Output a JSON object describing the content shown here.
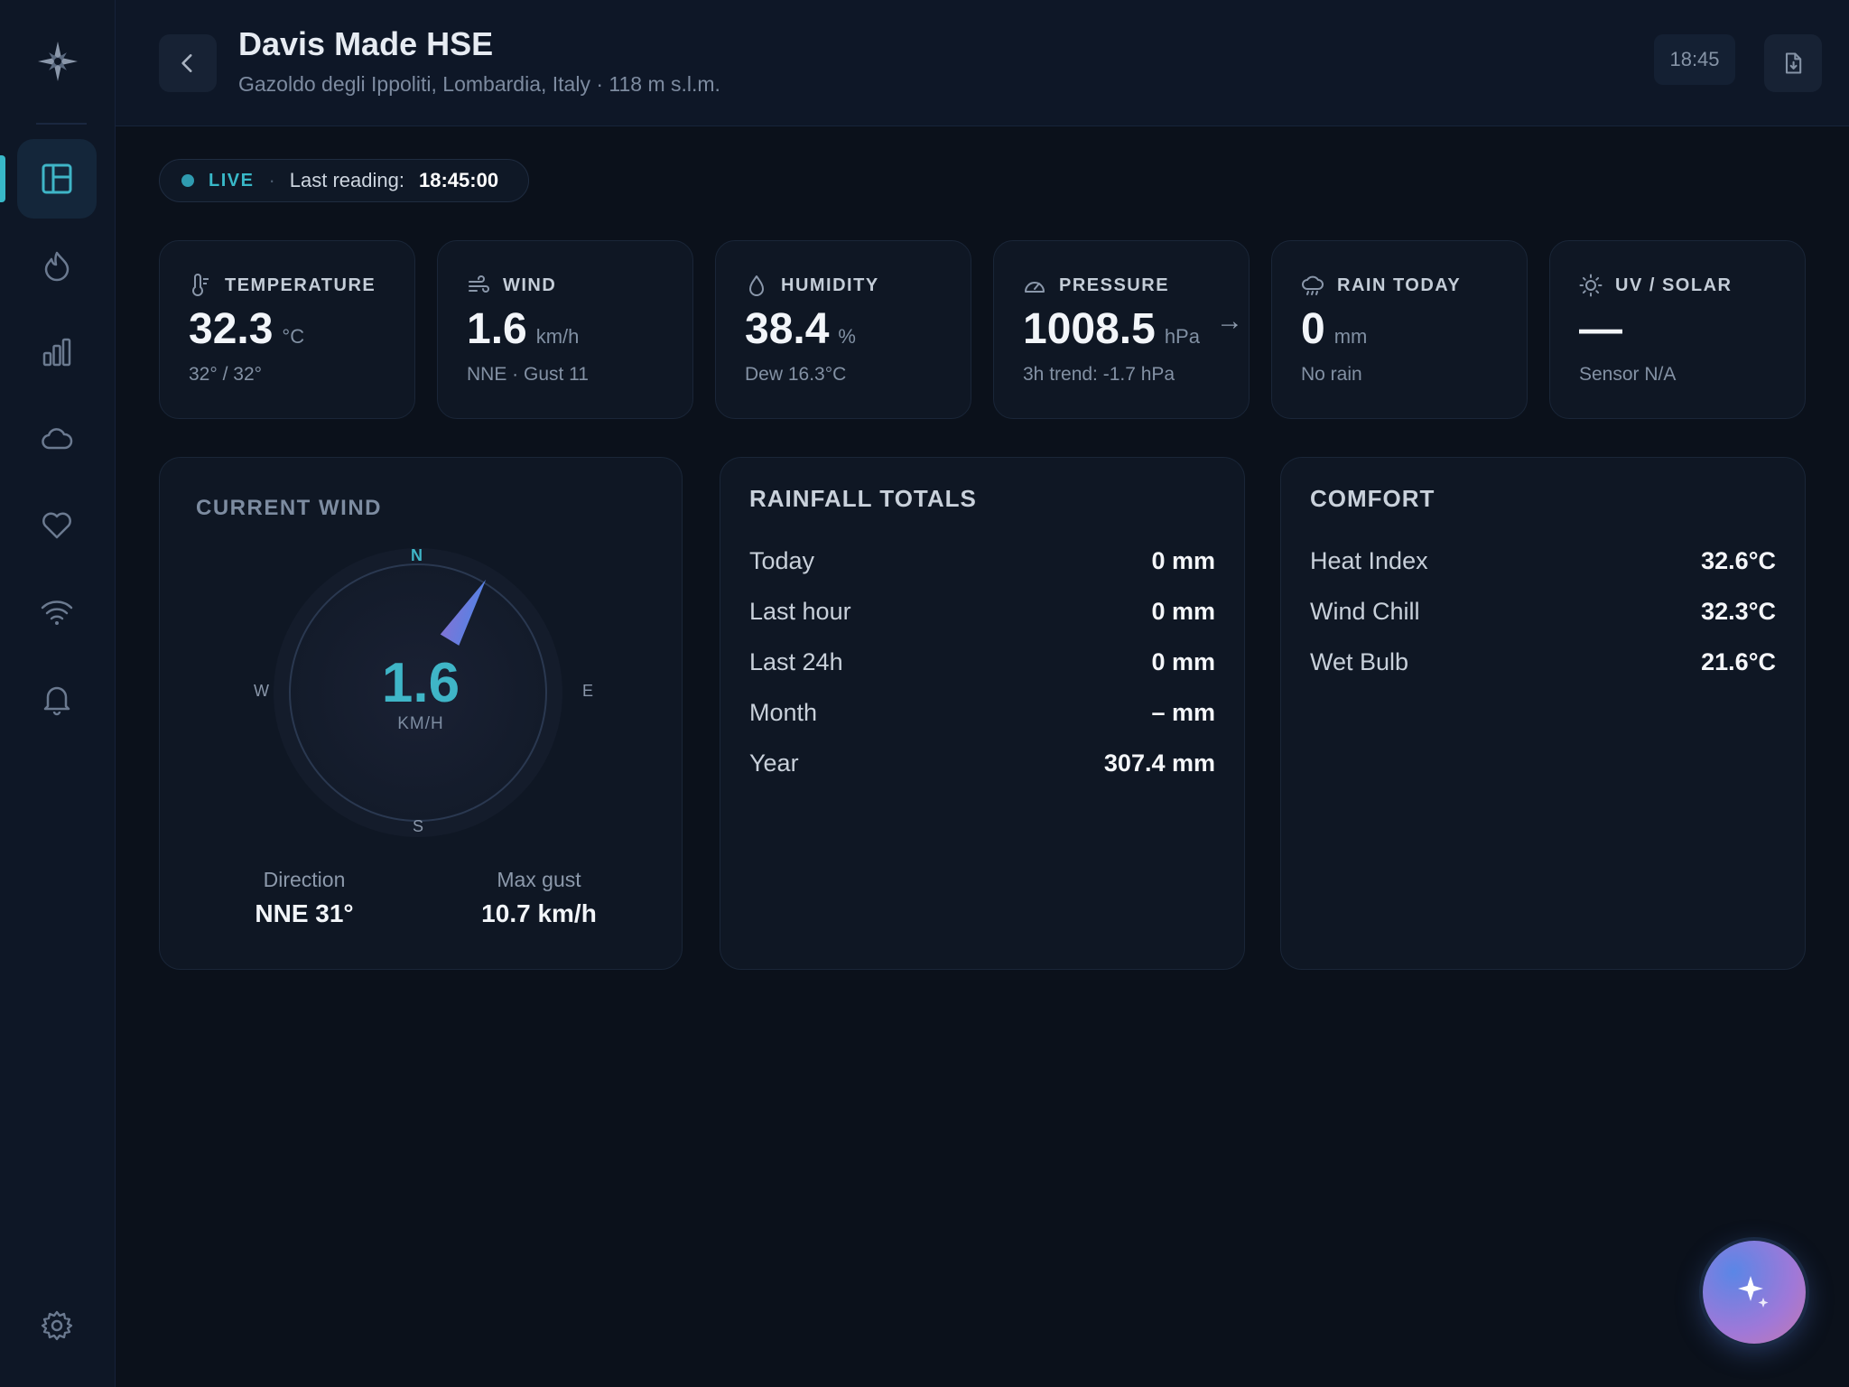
{
  "station": {
    "name": "Davis Made HSE",
    "location": "Gazoldo degli Ippoliti, Lombardia, Italy · 118 m s.l.m.",
    "clock": "18:45"
  },
  "status": {
    "live": "LIVE",
    "separator": "·",
    "last_reading_label": "Last reading:",
    "last_reading_value": "18:45:00"
  },
  "stats": [
    {
      "label": "TEMPERATURE",
      "value": "32.3",
      "unit": "°C",
      "sub": "32° / 32°",
      "icon": "thermometer-icon"
    },
    {
      "label": "WIND",
      "value": "1.6",
      "unit": "km/h",
      "sub": "NNE · Gust 11",
      "icon": "wind-icon"
    },
    {
      "label": "HUMIDITY",
      "value": "38.4",
      "unit": "%",
      "sub": "Dew 16.3°C",
      "icon": "droplet-icon"
    },
    {
      "label": "PRESSURE",
      "value": "1008.5",
      "unit": "hPa",
      "sub": "3h trend: -1.7 hPa",
      "icon": "gauge-icon",
      "trend": "→"
    },
    {
      "label": "RAIN TODAY",
      "value": "0",
      "unit": "mm",
      "sub": "No rain",
      "icon": "rain-cloud-icon"
    },
    {
      "label": "UV / SOLAR",
      "value": "—",
      "unit": "",
      "sub": "Sensor N/A",
      "icon": "sun-icon"
    }
  ],
  "wind_panel": {
    "title": "CURRENT WIND",
    "speed": "1.6",
    "unit": "KM/H",
    "direction_degrees": 31,
    "compass": {
      "n": "N",
      "e": "E",
      "s": "S",
      "w": "W"
    },
    "direction_label": "Direction",
    "direction_value": "NNE 31°",
    "gust_label": "Max gust",
    "gust_value": "10.7 km/h"
  },
  "rainfall": {
    "title": "RAINFALL TOTALS",
    "rows": [
      {
        "key": "Today",
        "value": "0 mm"
      },
      {
        "key": "Last hour",
        "value": "0 mm"
      },
      {
        "key": "Last 24h",
        "value": "0 mm"
      },
      {
        "key": "Month",
        "value": "– mm"
      },
      {
        "key": "Year",
        "value": "307.4 mm"
      }
    ]
  },
  "comfort": {
    "title": "COMFORT",
    "rows": [
      {
        "key": "Heat Index",
        "value": "32.6°C"
      },
      {
        "key": "Wind Chill",
        "value": "32.3°C"
      },
      {
        "key": "Wet Bulb",
        "value": "21.6°C"
      }
    ]
  },
  "sidebar": {
    "items": [
      "dashboard-icon",
      "flame-icon",
      "bar-chart-icon",
      "cloud-icon",
      "heart-icon",
      "wifi-icon",
      "bell-icon"
    ],
    "settings": "gear-icon"
  },
  "colors": {
    "accent": "#38b8c8",
    "background": "#0b111b",
    "card": "#0f1724"
  }
}
